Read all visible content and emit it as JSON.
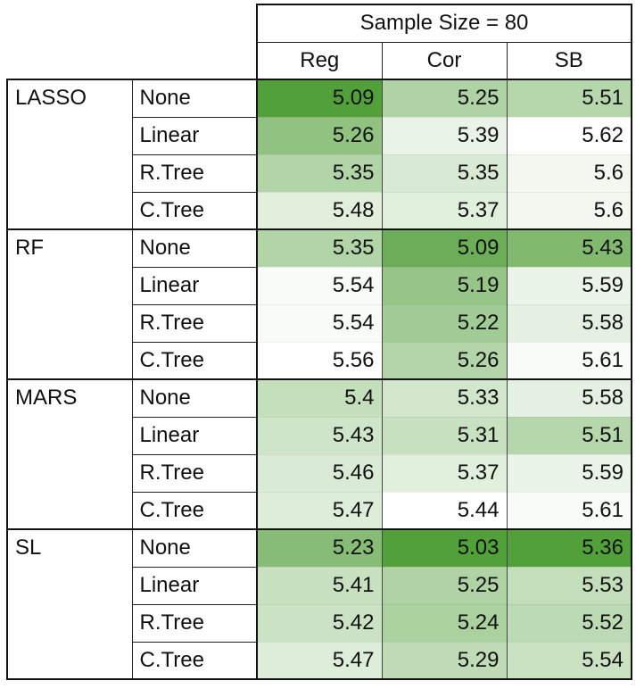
{
  "table": {
    "group_header": "Sample Size = 80",
    "columns": [
      "Reg",
      "Cor",
      "SB"
    ],
    "column_colors": {
      "min": [
        82,
        160,
        58
      ],
      "max": [
        255,
        255,
        255
      ]
    },
    "groups": [
      {
        "model": "LASSO",
        "rows": [
          {
            "adj": "None",
            "values": [
              "5.09",
              "5.25",
              "5.51"
            ]
          },
          {
            "adj": "Linear",
            "values": [
              "5.26",
              "5.39",
              "5.62"
            ]
          },
          {
            "adj": "R.Tree",
            "values": [
              "5.35",
              "5.35",
              "5.6"
            ]
          },
          {
            "adj": "C.Tree",
            "values": [
              "5.48",
              "5.37",
              "5.6"
            ]
          }
        ]
      },
      {
        "model": "RF",
        "rows": [
          {
            "adj": "None",
            "values": [
              "5.35",
              "5.09",
              "5.43"
            ]
          },
          {
            "adj": "Linear",
            "values": [
              "5.54",
              "5.19",
              "5.59"
            ]
          },
          {
            "adj": "R.Tree",
            "values": [
              "5.54",
              "5.22",
              "5.58"
            ]
          },
          {
            "adj": "C.Tree",
            "values": [
              "5.56",
              "5.26",
              "5.61"
            ]
          }
        ]
      },
      {
        "model": "MARS",
        "rows": [
          {
            "adj": "None",
            "values": [
              "5.4",
              "5.33",
              "5.58"
            ]
          },
          {
            "adj": "Linear",
            "values": [
              "5.43",
              "5.31",
              "5.51"
            ]
          },
          {
            "adj": "R.Tree",
            "values": [
              "5.46",
              "5.37",
              "5.59"
            ]
          },
          {
            "adj": "C.Tree",
            "values": [
              "5.47",
              "5.44",
              "5.61"
            ]
          }
        ]
      },
      {
        "model": "SL",
        "rows": [
          {
            "adj": "None",
            "values": [
              "5.23",
              "5.03",
              "5.36"
            ]
          },
          {
            "adj": "Linear",
            "values": [
              "5.41",
              "5.25",
              "5.53"
            ]
          },
          {
            "adj": "R.Tree",
            "values": [
              "5.42",
              "5.24",
              "5.52"
            ]
          },
          {
            "adj": "C.Tree",
            "values": [
              "5.47",
              "5.29",
              "5.54"
            ]
          }
        ]
      }
    ]
  }
}
